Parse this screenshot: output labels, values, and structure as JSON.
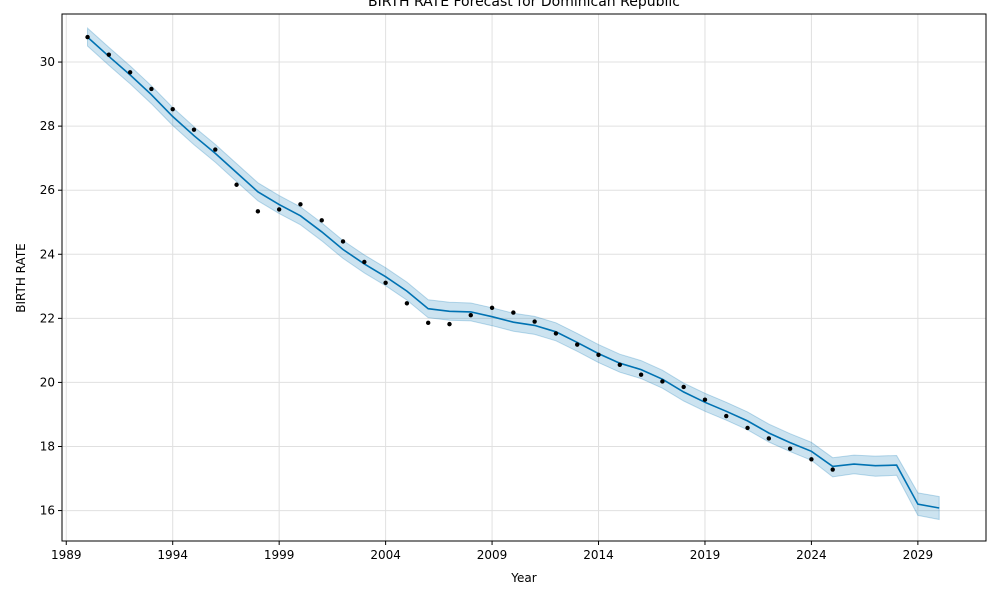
{
  "chart_data": {
    "type": "line",
    "title": "BIRTH RATE Forecast for Dominican Republic",
    "xlabel": "Year",
    "ylabel": "BIRTH RATE",
    "xlim": [
      1988.8,
      2032.2
    ],
    "ylim": [
      15.05,
      31.5
    ],
    "grid": true,
    "x_ticks": [
      1989,
      1994,
      1999,
      2004,
      2009,
      2014,
      2019,
      2024,
      2029
    ],
    "y_ticks": [
      16,
      18,
      20,
      22,
      24,
      26,
      28,
      30
    ],
    "colors": {
      "forecast_line": "#0072B2",
      "interval_fill": "#0072B2",
      "observed_points": "#000000",
      "grid": "#e0e0e0"
    },
    "series": [
      {
        "role": "observed",
        "x": [
          1990,
          1991,
          1992,
          1993,
          1994,
          1995,
          1996,
          1997,
          1998,
          1999,
          2000,
          2001,
          2002,
          2003,
          2004,
          2005,
          2006,
          2007,
          2008,
          2009,
          2010,
          2011,
          2012,
          2013,
          2014,
          2015,
          2016,
          2017,
          2018,
          2019,
          2020,
          2021,
          2022,
          2023,
          2024,
          2025
        ],
        "y": [
          30.78,
          30.23,
          29.68,
          29.16,
          28.53,
          27.89,
          27.27,
          26.17,
          25.34,
          25.4,
          25.56,
          25.06,
          24.4,
          23.76,
          23.11,
          22.47,
          21.86,
          21.82,
          22.1,
          22.33,
          22.18,
          21.9,
          21.53,
          21.18,
          20.86,
          20.55,
          20.24,
          20.03,
          19.86,
          19.46,
          18.95,
          18.58,
          18.25,
          17.93,
          17.6,
          17.28
        ]
      },
      {
        "role": "forecast",
        "x": [
          1990,
          1991,
          1992,
          1993,
          1994,
          1995,
          1996,
          1997,
          1998,
          1999,
          2000,
          2001,
          2002,
          2003,
          2004,
          2005,
          2006,
          2007,
          2008,
          2009,
          2010,
          2011,
          2012,
          2013,
          2014,
          2015,
          2016,
          2017,
          2018,
          2019,
          2020,
          2021,
          2022,
          2023,
          2024,
          2025,
          2026,
          2027,
          2028,
          2029,
          2030
        ],
        "y": [
          30.78,
          30.18,
          29.6,
          28.98,
          28.3,
          27.7,
          27.15,
          26.55,
          25.95,
          25.55,
          25.2,
          24.7,
          24.15,
          23.7,
          23.3,
          22.85,
          22.3,
          22.22,
          22.2,
          22.05,
          21.88,
          21.78,
          21.58,
          21.25,
          20.9,
          20.6,
          20.4,
          20.1,
          19.7,
          19.38,
          19.1,
          18.8,
          18.42,
          18.12,
          17.85,
          17.38,
          17.45,
          17.4,
          17.42,
          16.2,
          16.08
        ]
      },
      {
        "role": "interval",
        "x": [
          1990,
          1991,
          1992,
          1993,
          1994,
          1995,
          1996,
          1997,
          1998,
          1999,
          2000,
          2001,
          2002,
          2003,
          2004,
          2005,
          2006,
          2007,
          2008,
          2009,
          2010,
          2011,
          2012,
          2013,
          2014,
          2015,
          2016,
          2017,
          2018,
          2019,
          2020,
          2021,
          2022,
          2023,
          2024,
          2025,
          2026,
          2027,
          2028,
          2029,
          2030
        ],
        "lower": [
          30.5,
          29.9,
          29.32,
          28.7,
          28.02,
          27.42,
          26.87,
          26.27,
          25.67,
          25.27,
          24.92,
          24.42,
          23.87,
          23.42,
          23.02,
          22.57,
          22.02,
          21.94,
          21.92,
          21.77,
          21.6,
          21.5,
          21.3,
          20.97,
          20.62,
          20.32,
          20.12,
          19.82,
          19.42,
          19.1,
          18.82,
          18.52,
          18.14,
          17.84,
          17.57,
          17.05,
          17.15,
          17.07,
          17.1,
          15.85,
          15.72
        ],
        "upper": [
          31.06,
          30.46,
          29.88,
          29.26,
          28.58,
          27.98,
          27.43,
          26.83,
          26.23,
          25.83,
          25.48,
          24.98,
          24.43,
          23.98,
          23.58,
          23.13,
          22.58,
          22.5,
          22.48,
          22.33,
          22.16,
          22.06,
          21.86,
          21.53,
          21.18,
          20.88,
          20.68,
          20.38,
          19.98,
          19.66,
          19.38,
          19.08,
          18.7,
          18.4,
          18.13,
          17.65,
          17.73,
          17.7,
          17.72,
          16.55,
          16.44
        ]
      }
    ]
  }
}
